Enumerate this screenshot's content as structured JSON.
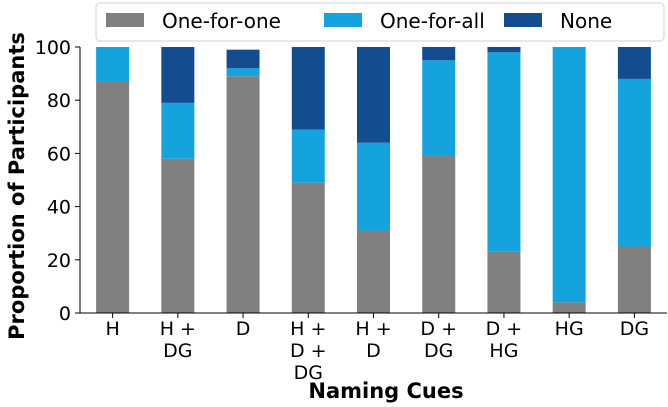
{
  "chart_data": {
    "type": "bar",
    "stacked": true,
    "title": "",
    "xlabel": "Naming Cues",
    "ylabel": "Proportion of Participants",
    "ylim": [
      0,
      100
    ],
    "yticks": [
      0,
      20,
      40,
      60,
      80,
      100
    ],
    "grid": false,
    "legend_position": "top",
    "categories": [
      [
        "H"
      ],
      [
        "H +",
        "DG"
      ],
      [
        "D"
      ],
      [
        "H +",
        "D +",
        "DG"
      ],
      [
        "H +",
        "D"
      ],
      [
        "D +",
        "DG"
      ],
      [
        "D +",
        "HG"
      ],
      [
        "HG"
      ],
      [
        "DG"
      ]
    ],
    "series": [
      {
        "name": "One-for-one",
        "color": "#808080",
        "values": [
          87,
          58,
          89,
          49,
          31,
          59,
          23,
          4,
          25
        ]
      },
      {
        "name": "One-for-all",
        "color": "#14a3dc",
        "values": [
          13,
          21,
          3,
          20,
          33,
          36,
          75,
          96,
          63
        ]
      },
      {
        "name": "None",
        "color": "#134d8f",
        "values": [
          0,
          21,
          7,
          31,
          36,
          5,
          2,
          0,
          12
        ]
      }
    ]
  }
}
